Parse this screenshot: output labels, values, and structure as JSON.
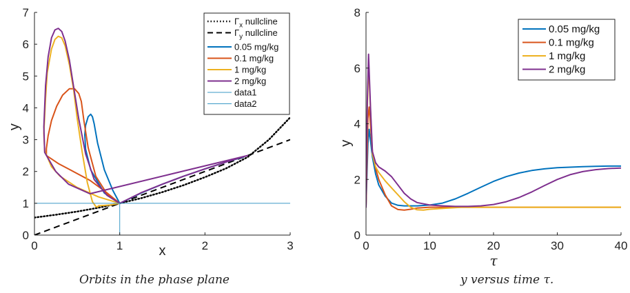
{
  "chart_data": [
    {
      "type": "line",
      "caption": "Orbits in the phase plane",
      "xlabel": "x",
      "ylabel": "y",
      "xlim": [
        0,
        3
      ],
      "ylim": [
        0,
        7
      ],
      "xticks": [
        "0",
        "1",
        "2",
        "3"
      ],
      "yticks": [
        "0",
        "1",
        "2",
        "3",
        "4",
        "5",
        "6",
        "7"
      ],
      "legend_position": "top-right",
      "series": [
        {
          "name": "Γx nullcline",
          "legend_base": "Γ",
          "legend_sub": "x",
          "legend_rest": " nullcline",
          "style": "dotted",
          "color": "#000000",
          "x": [
            0,
            0.25,
            0.5,
            0.75,
            1.0,
            1.25,
            1.5,
            1.75,
            2.0,
            2.25,
            2.5,
            2.75,
            3.0
          ],
          "y": [
            0.55,
            0.64,
            0.74,
            0.86,
            1.0,
            1.16,
            1.35,
            1.57,
            1.82,
            2.1,
            2.45,
            3.0,
            3.7
          ]
        },
        {
          "name": "Γy nullcline",
          "legend_base": "Γ",
          "legend_sub": "y",
          "legend_rest": " nullcline",
          "style": "dashed",
          "color": "#000000",
          "x": [
            0,
            3
          ],
          "y": [
            0,
            3
          ]
        },
        {
          "name": "0.05 mg/kg",
          "style": "solid",
          "color": "#0072BD",
          "x": [
            1.0,
            0.82,
            0.66,
            0.6,
            0.59,
            0.6,
            0.63,
            0.66,
            0.68,
            0.7,
            0.74,
            0.82,
            0.92,
            1.0,
            1.25,
            1.5,
            1.75,
            2.0,
            2.25,
            2.45
          ],
          "y": [
            1.0,
            1.32,
            2.05,
            2.7,
            3.15,
            3.45,
            3.72,
            3.8,
            3.72,
            3.5,
            2.9,
            2.05,
            1.4,
            1.0,
            1.32,
            1.6,
            1.85,
            2.08,
            2.3,
            2.45
          ]
        },
        {
          "name": "0.1 mg/kg",
          "style": "solid",
          "color": "#D95319",
          "x": [
            0.14,
            0.14,
            0.16,
            0.2,
            0.26,
            0.33,
            0.41,
            0.47,
            0.52,
            0.55,
            0.58,
            0.63,
            0.72,
            0.85,
            1.0,
            0.85,
            0.65,
            0.42,
            0.28,
            0.14
          ],
          "y": [
            2.5,
            2.72,
            3.12,
            3.6,
            4.05,
            4.4,
            4.6,
            4.6,
            4.45,
            4.2,
            3.6,
            2.75,
            1.85,
            1.3,
            1.0,
            1.33,
            1.72,
            2.05,
            2.25,
            2.5
          ]
        },
        {
          "name": "1 mg/kg",
          "style": "solid",
          "color": "#EDB120",
          "x": [
            0.12,
            0.11,
            0.13,
            0.15,
            0.2,
            0.24,
            0.28,
            0.32,
            0.36,
            0.41,
            0.46,
            0.5,
            0.56,
            0.62,
            0.68,
            0.72,
            0.74,
            0.75,
            0.8,
            0.9,
            1.0,
            0.75,
            0.5,
            0.3,
            0.2,
            0.12
          ],
          "y": [
            2.65,
            3.2,
            4.3,
            5.1,
            5.85,
            6.15,
            6.25,
            6.2,
            5.95,
            5.35,
            4.55,
            3.7,
            2.6,
            1.65,
            1.05,
            0.9,
            0.88,
            0.92,
            0.93,
            0.95,
            1.0,
            1.2,
            1.5,
            1.85,
            2.15,
            2.65
          ]
        },
        {
          "name": "2 mg/kg",
          "style": "solid",
          "color": "#7E2F8E",
          "x": [
            0.12,
            0.11,
            0.13,
            0.16,
            0.2,
            0.24,
            0.28,
            0.32,
            0.36,
            0.41,
            0.46,
            0.52,
            0.6,
            0.7,
            0.85,
            1.0,
            1.25,
            1.5,
            1.75,
            2.0,
            2.25,
            2.5,
            0.65,
            0.4,
            0.25,
            0.12
          ],
          "y": [
            2.6,
            3.4,
            4.7,
            5.6,
            6.2,
            6.45,
            6.5,
            6.4,
            6.1,
            5.5,
            4.65,
            3.65,
            2.55,
            1.75,
            1.25,
            1.0,
            1.33,
            1.6,
            1.85,
            2.08,
            2.3,
            2.5,
            1.3,
            1.6,
            2.0,
            2.6
          ]
        },
        {
          "name": "data1",
          "style": "solid",
          "color": "#3A99C6",
          "width": 1,
          "x": [
            0,
            3
          ],
          "y": [
            1,
            1
          ]
        },
        {
          "name": "data2",
          "style": "solid",
          "color": "#3A99C6",
          "width": 1,
          "x": [
            1,
            1
          ],
          "y": [
            0,
            1
          ]
        }
      ]
    },
    {
      "type": "line",
      "caption": "y versus time τ.",
      "xlabel": "τ",
      "ylabel": "y",
      "xlim": [
        0,
        40
      ],
      "ylim": [
        0,
        8
      ],
      "xticks": [
        "0",
        "10",
        "20",
        "30",
        "40"
      ],
      "yticks": [
        "0",
        "2",
        "4",
        "6",
        "8"
      ],
      "legend_position": "top-right",
      "series": [
        {
          "name": "0.05 mg/kg",
          "color": "#0072BD",
          "x": [
            0,
            0.3,
            0.5,
            1,
            1.5,
            2,
            3,
            4,
            5,
            6,
            8,
            10,
            12,
            14,
            16,
            18,
            20,
            22,
            24,
            26,
            28,
            30,
            32,
            34,
            36,
            38,
            40
          ],
          "y": [
            1.0,
            3.3,
            3.8,
            2.8,
            2.2,
            1.8,
            1.4,
            1.15,
            1.07,
            1.05,
            1.05,
            1.08,
            1.15,
            1.3,
            1.5,
            1.72,
            1.93,
            2.1,
            2.23,
            2.32,
            2.38,
            2.42,
            2.44,
            2.46,
            2.47,
            2.48,
            2.48
          ]
        },
        {
          "name": "0.1 mg/kg",
          "color": "#D95319",
          "x": [
            0,
            0.3,
            0.5,
            1,
            1.5,
            2,
            3,
            4,
            5,
            6,
            7,
            8,
            10,
            15,
            20,
            25,
            30,
            35,
            40
          ],
          "y": [
            1.0,
            4.2,
            4.6,
            3.0,
            2.4,
            2.0,
            1.45,
            1.05,
            0.92,
            0.9,
            0.93,
            0.97,
            1.0,
            1.0,
            1.0,
            1.0,
            1.0,
            1.0,
            1.0
          ]
        },
        {
          "name": "1 mg/kg",
          "color": "#EDB120",
          "x": [
            0,
            0.2,
            0.4,
            0.7,
            1,
            1.5,
            2,
            3,
            4,
            5,
            6,
            7,
            8,
            9,
            10,
            15,
            20,
            25,
            30,
            35,
            40
          ],
          "y": [
            1.0,
            4.5,
            6.2,
            4.5,
            2.9,
            2.45,
            2.25,
            1.95,
            1.7,
            1.45,
            1.2,
            1.0,
            0.91,
            0.9,
            0.93,
            1.0,
            1.0,
            1.0,
            1.0,
            1.0,
            1.0
          ]
        },
        {
          "name": "2 mg/kg",
          "color": "#7E2F8E",
          "x": [
            0,
            0.2,
            0.4,
            0.7,
            1,
            1.5,
            2,
            3,
            4,
            5,
            6,
            7,
            8,
            10,
            12,
            14,
            16,
            18,
            20,
            22,
            24,
            26,
            28,
            30,
            32,
            34,
            36,
            38,
            40
          ],
          "y": [
            1.0,
            4.8,
            6.5,
            4.6,
            3.0,
            2.6,
            2.45,
            2.3,
            2.1,
            1.8,
            1.5,
            1.3,
            1.17,
            1.08,
            1.05,
            1.03,
            1.03,
            1.05,
            1.1,
            1.2,
            1.35,
            1.55,
            1.78,
            2.0,
            2.17,
            2.28,
            2.35,
            2.39,
            2.41
          ]
        }
      ]
    }
  ]
}
